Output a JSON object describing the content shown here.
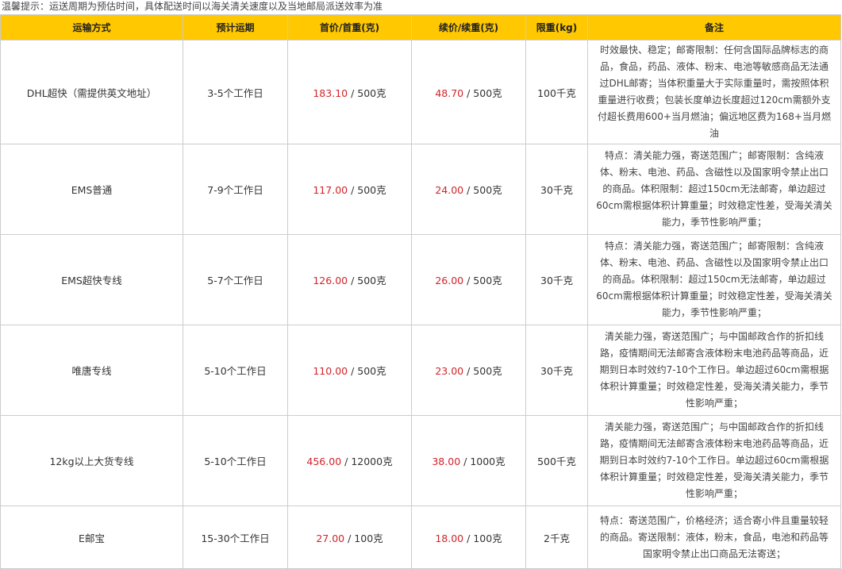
{
  "notice": "温馨提示：运送周期为预估时间，具体配送时间以海关清关速度以及当地邮局派送效率为准",
  "headers": [
    "运输方式",
    "预计运期",
    "首价/首重(克)",
    "续价/续重(克)",
    "限重(kg)",
    "备注"
  ],
  "colors": {
    "header_bg": "#ffc800",
    "price": "#d2232a"
  },
  "rows": [
    {
      "method": "DHL超快（需提供英文地址）",
      "period": "3-5个工作日",
      "first_price": "183.10",
      "first_weight": "500克",
      "cont_price": "48.70",
      "cont_weight": "500克",
      "limit": "100千克",
      "remark": "时效最快、稳定；邮寄限制：任何含国际品牌标志的商品，食品，药品、液体、粉末、电池等敏感商品无法通过DHL邮寄；当体积重量大于实际重量时，需按照体积重量进行收费；包装长度单边长度超过120cm需额外支付超长费用600+当月燃油；偏远地区费为168+当月燃油"
    },
    {
      "method": "EMS普通",
      "period": "7-9个工作日",
      "first_price": "117.00",
      "first_weight": "500克",
      "cont_price": "24.00",
      "cont_weight": "500克",
      "limit": "30千克",
      "remark": "特点：清关能力强，寄送范围广；邮寄限制：含纯液体、粉末、电池、药品、含磁性以及国家明令禁止出口的商品。体积限制：超过150cm无法邮寄，单边超过60cm需根据体积计算重量；时效稳定性差，受海关清关能力，季节性影响严重；"
    },
    {
      "method": "EMS超快专线",
      "period": "5-7个工作日",
      "first_price": "126.00",
      "first_weight": "500克",
      "cont_price": "26.00",
      "cont_weight": "500克",
      "limit": "30千克",
      "remark": "特点：清关能力强，寄送范围广；邮寄限制：含纯液体、粉末、电池、药品、含磁性以及国家明令禁止出口的商品。体积限制：超过150cm无法邮寄，单边超过60cm需根据体积计算重量；时效稳定性差，受海关清关能力，季节性影响严重；"
    },
    {
      "method": "唯唐专线",
      "period": "5-10个工作日",
      "first_price": "110.00",
      "first_weight": "500克",
      "cont_price": "23.00",
      "cont_weight": "500克",
      "limit": "30千克",
      "remark": "清关能力强，寄送范围广；与中国邮政合作的折扣线路，疫情期间无法邮寄含液体粉末电池药品等商品，近期到日本时效约7-10个工作日。单边超过60cm需根据体积计算重量；时效稳定性差，受海关清关能力，季节性影响严重；"
    },
    {
      "method": "12kg以上大货专线",
      "period": "5-10个工作日",
      "first_price": "456.00",
      "first_weight": "12000克",
      "cont_price": "38.00",
      "cont_weight": "1000克",
      "limit": "500千克",
      "remark": "清关能力强，寄送范围广；与中国邮政合作的折扣线路，疫情期间无法邮寄含液体粉末电池药品等商品，近期到日本时效约7-10个工作日。单边超过60cm需根据体积计算重量；时效稳定性差，受海关清关能力，季节性影响严重；"
    },
    {
      "method": "E邮宝",
      "period": "15-30个工作日",
      "first_price": "27.00",
      "first_weight": "100克",
      "cont_price": "18.00",
      "cont_weight": "100克",
      "limit": "2千克",
      "remark": "特点：寄送范围广，价格经济；适合寄小件且重量较轻的商品。寄送限制：液体，粉末，食品，电池和药品等国家明令禁止出口商品无法寄送；"
    }
  ]
}
